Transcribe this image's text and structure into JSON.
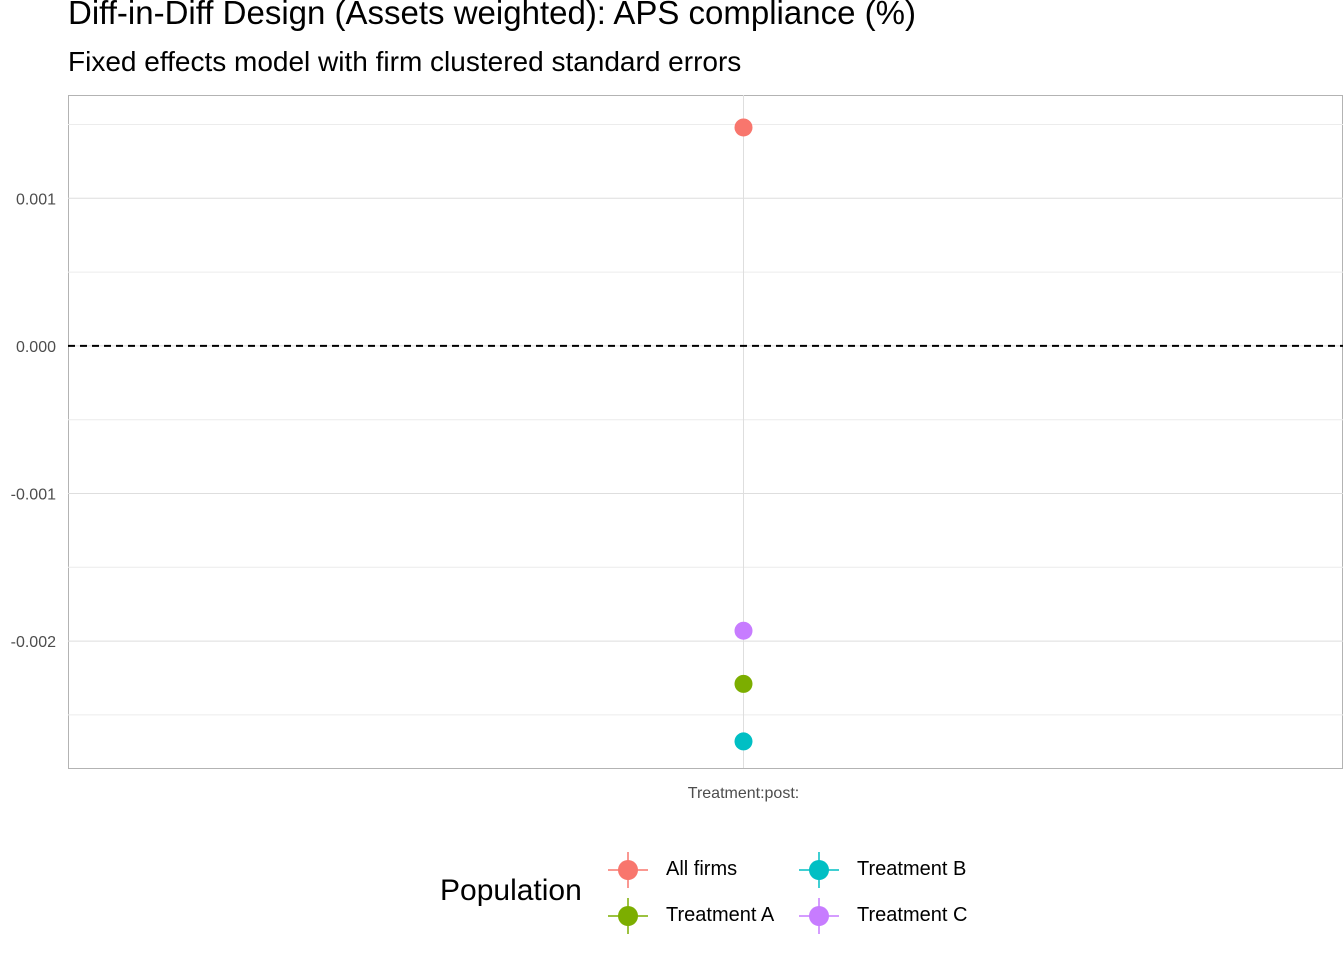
{
  "chart_data": {
    "type": "scatter",
    "title": "Diff-in-Diff Design (Assets weighted): APS compliance (%)",
    "subtitle": "Fixed effects model with firm clustered standard errors",
    "xlabel": "",
    "ylabel": "",
    "categories": [
      "Treatment:post:"
    ],
    "ylim": [
      -0.00286,
      0.0017
    ],
    "y_ticks": [
      "0.001",
      "0.000",
      "-0.001",
      "-0.002"
    ],
    "y_tick_values": [
      0.001,
      0.0,
      -0.001,
      -0.002
    ],
    "reference_line": {
      "y": 0.0,
      "style": "dashed"
    },
    "grid": true,
    "legend": {
      "title": "Population",
      "placement": "bottom"
    },
    "series": [
      {
        "name": "All firms",
        "color": "#F8766D",
        "values": [
          0.00148
        ]
      },
      {
        "name": "Treatment A",
        "color": "#7CAE00",
        "values": [
          -0.00229
        ]
      },
      {
        "name": "Treatment B",
        "color": "#00BFC4",
        "values": [
          -0.00268
        ]
      },
      {
        "name": "Treatment C",
        "color": "#C77CFF",
        "values": [
          -0.00193
        ]
      }
    ]
  }
}
